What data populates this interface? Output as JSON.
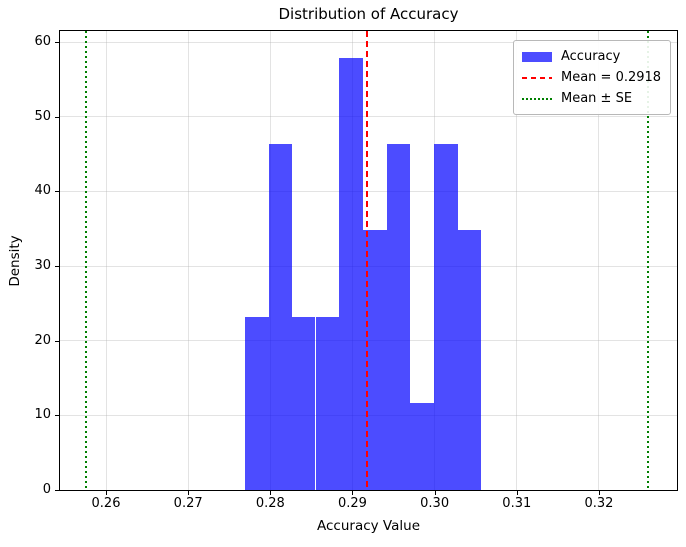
{
  "figure": {
    "background": "#ffffff"
  },
  "chart_data": {
    "type": "bar",
    "subtype": "histogram",
    "title": "Distribution of Accuracy",
    "xlabel": "Accuracy Value",
    "ylabel": "Density",
    "xlim": [
      0.2544,
      0.3295
    ],
    "ylim": [
      0,
      61.5
    ],
    "grid": true,
    "grid_color": "rgba(176,176,176,0.35)",
    "x_ticks": [
      0.26,
      0.27,
      0.28,
      0.29,
      0.3,
      0.31,
      0.32
    ],
    "x_tick_labels": [
      "0.26",
      "0.27",
      "0.28",
      "0.29",
      "0.30",
      "0.31",
      "0.32"
    ],
    "y_ticks": [
      0,
      10,
      20,
      30,
      40,
      50,
      60
    ],
    "y_tick_labels": [
      "0",
      "10",
      "20",
      "30",
      "40",
      "50",
      "60"
    ],
    "histogram": {
      "bin_edges": [
        0.2769,
        0.2798,
        0.2826,
        0.2855,
        0.2884,
        0.2913,
        0.2942,
        0.297,
        0.2999,
        0.3028,
        0.3057
      ],
      "densities": [
        23.2,
        46.3,
        23.2,
        23.2,
        57.9,
        34.8,
        46.3,
        11.6,
        46.3,
        34.8
      ],
      "counts": [
        2,
        4,
        2,
        2,
        5,
        3,
        4,
        1,
        4,
        3
      ],
      "color": "rgba(0,0,255,0.7)"
    },
    "vlines": [
      {
        "x": 0.2918,
        "style": "dashed",
        "color": "#ff0000",
        "name": "mean-line"
      },
      {
        "x": 0.2576,
        "style": "dotted",
        "color": "#008000",
        "name": "mean-minus-se-line"
      },
      {
        "x": 0.326,
        "style": "dotted",
        "color": "#008000",
        "name": "mean-plus-se-line"
      }
    ],
    "mean": 0.2918,
    "legend": {
      "position": "top-right",
      "entries": [
        {
          "swatch": "patch",
          "color": "rgba(0,0,255,0.7)",
          "label": "Accuracy"
        },
        {
          "swatch": "dashed",
          "color": "#ff0000",
          "label": "Mean = 0.2918"
        },
        {
          "swatch": "dotted",
          "color": "#008000",
          "label": "Mean ± SE"
        }
      ]
    }
  }
}
